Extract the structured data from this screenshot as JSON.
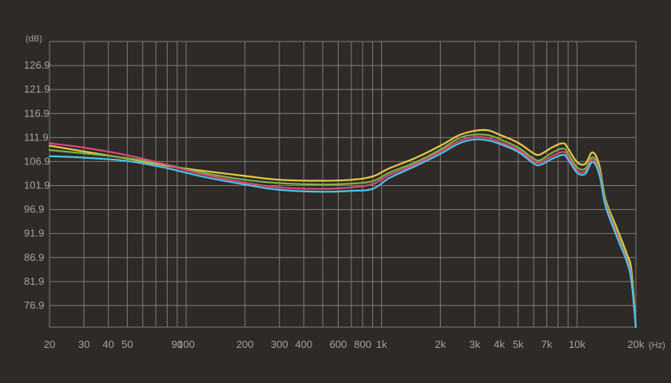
{
  "chart_data": {
    "type": "line",
    "x_scale": "log",
    "xlim": [
      20,
      20000
    ],
    "ylim": [
      72.4,
      131.9
    ],
    "ylabel": "(dB)",
    "xlabel": "(Hz)",
    "grid": true,
    "background": "#2e2a27",
    "gridColor": "#8c8580",
    "labelColor": "#a9a19a",
    "yticks": [
      76.9,
      81.9,
      86.9,
      91.9,
      96.9,
      101.9,
      106.9,
      111.9,
      116.9,
      121.9,
      126.9
    ],
    "ytick_labels": [
      "76.9",
      "81.9",
      "86.9",
      "91.9",
      "96.9",
      "101.9",
      "106.9",
      "111.9",
      "116.9",
      "121.9",
      "126.9"
    ],
    "xgrid": [
      20,
      30,
      40,
      50,
      60,
      70,
      80,
      90,
      100,
      200,
      300,
      400,
      500,
      600,
      700,
      800,
      900,
      1000,
      2000,
      3000,
      4000,
      5000,
      6000,
      7000,
      8000,
      9000,
      10000,
      20000
    ],
    "xtick_values": [
      20,
      30,
      40,
      50,
      90,
      100,
      200,
      300,
      400,
      600,
      800,
      1000,
      2000,
      3000,
      4000,
      5000,
      7000,
      10000,
      20000
    ],
    "xtick_labels": [
      "20",
      "30",
      "40",
      "50",
      "90",
      "100",
      "200",
      "300",
      "400",
      "600",
      "800",
      "1k",
      "2k",
      "3k",
      "4k",
      "5k",
      "7k",
      "10k",
      "20k"
    ],
    "series": [
      {
        "color": "#e8c84a",
        "x": [
          20,
          30,
          50,
          80,
          120,
          200,
          300,
          500,
          700,
          900,
          1100,
          1500,
          2000,
          2500,
          3000,
          3500,
          4000,
          5000,
          6000,
          6500,
          7500,
          8500,
          9000,
          10000,
          11000,
          12000,
          13000,
          14000,
          16000,
          18000,
          19000,
          20000
        ],
        "y": [
          110.2,
          109.0,
          107.5,
          106.0,
          105.0,
          103.9,
          103.1,
          102.9,
          103.1,
          103.8,
          105.5,
          107.7,
          110.2,
          112.4,
          113.3,
          113.4,
          112.5,
          110.8,
          108.6,
          108.4,
          109.9,
          110.7,
          109.6,
          106.8,
          106.4,
          108.8,
          106.1,
          99.0,
          93.0,
          87.6,
          84.1,
          71.5
        ]
      },
      {
        "color": "#7cb342",
        "x": [
          20,
          30,
          50,
          80,
          120,
          200,
          300,
          500,
          700,
          900,
          1100,
          1500,
          2000,
          2500,
          3000,
          3500,
          4000,
          5000,
          6000,
          6500,
          7500,
          8500,
          9000,
          10000,
          11000,
          12000,
          13000,
          14000,
          16000,
          18000,
          19000,
          20000
        ],
        "y": [
          109.3,
          108.6,
          107.6,
          106.2,
          104.6,
          103.1,
          102.4,
          102.1,
          102.3,
          102.8,
          104.6,
          106.8,
          109.4,
          111.8,
          112.5,
          112.4,
          111.6,
          109.8,
          107.5,
          107.2,
          108.8,
          109.6,
          108.6,
          105.7,
          105.4,
          107.8,
          105.3,
          98.6,
          92.3,
          86.6,
          82.8,
          71.5
        ]
      },
      {
        "color": "#d84a7a",
        "x": [
          20,
          30,
          50,
          80,
          120,
          200,
          300,
          500,
          700,
          900,
          1100,
          1500,
          2000,
          2500,
          3000,
          3500,
          4000,
          5000,
          6000,
          6500,
          7500,
          8500,
          9000,
          10000,
          11000,
          12000,
          13000,
          14000,
          16000,
          18000,
          19000,
          20000
        ],
        "y": [
          110.7,
          109.8,
          108.2,
          106.2,
          104.3,
          102.5,
          101.5,
          101.2,
          101.5,
          102.2,
          104.1,
          106.4,
          109.0,
          111.2,
          112.0,
          111.8,
          111.0,
          109.3,
          107.0,
          106.7,
          108.1,
          108.9,
          107.9,
          105.1,
          104.8,
          107.3,
          104.7,
          98.0,
          91.7,
          86.3,
          82.3,
          71.5
        ]
      },
      {
        "color": "#4fc3e8",
        "x": [
          20,
          30,
          50,
          80,
          120,
          200,
          300,
          500,
          700,
          900,
          1100,
          1500,
          2000,
          2500,
          3000,
          3500,
          4000,
          5000,
          6000,
          6500,
          7500,
          8500,
          9000,
          10000,
          11000,
          12000,
          13000,
          14000,
          16000,
          18000,
          19000,
          20000
        ],
        "y": [
          108.0,
          107.7,
          107.0,
          105.5,
          103.8,
          102.1,
          101.0,
          100.6,
          100.8,
          101.2,
          103.5,
          106.0,
          108.5,
          110.7,
          111.5,
          111.3,
          110.6,
          108.9,
          106.5,
          106.2,
          107.5,
          108.3,
          107.3,
          104.6,
          104.3,
          106.8,
          104.2,
          97.6,
          91.2,
          86.0,
          81.8,
          71.5
        ]
      }
    ]
  }
}
